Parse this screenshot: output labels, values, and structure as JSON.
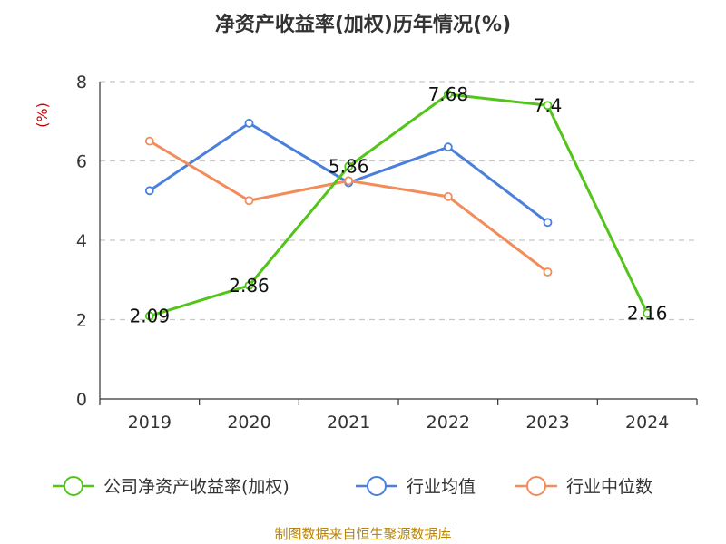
{
  "chart_data": {
    "type": "line",
    "title": "净资产收益率(加权)历年情况(%)",
    "ylabel": "(%)",
    "xlabel": "",
    "categories": [
      "2019",
      "2020",
      "2021",
      "2022",
      "2023",
      "2024"
    ],
    "ylim": [
      0,
      8
    ],
    "yticks": [
      0,
      2,
      4,
      6,
      8
    ],
    "grid": true,
    "legend_position": "bottom",
    "series": [
      {
        "name": "公司净资产收益率(加权)",
        "color": "#52c41a",
        "values": [
          2.09,
          2.86,
          5.86,
          7.68,
          7.4,
          2.16
        ],
        "labels": [
          "2.09",
          "2.86",
          "5.86",
          "7.68",
          "7.4",
          "2.16"
        ]
      },
      {
        "name": "行业均值",
        "color": "#4a7fdc",
        "values": [
          5.25,
          6.95,
          5.45,
          6.35,
          4.45,
          null
        ]
      },
      {
        "name": "行业中位数",
        "color": "#f28c5a",
        "values": [
          6.5,
          5.0,
          5.5,
          5.1,
          3.2,
          null
        ]
      }
    ],
    "source": "制图数据来自恒生聚源数据库"
  }
}
